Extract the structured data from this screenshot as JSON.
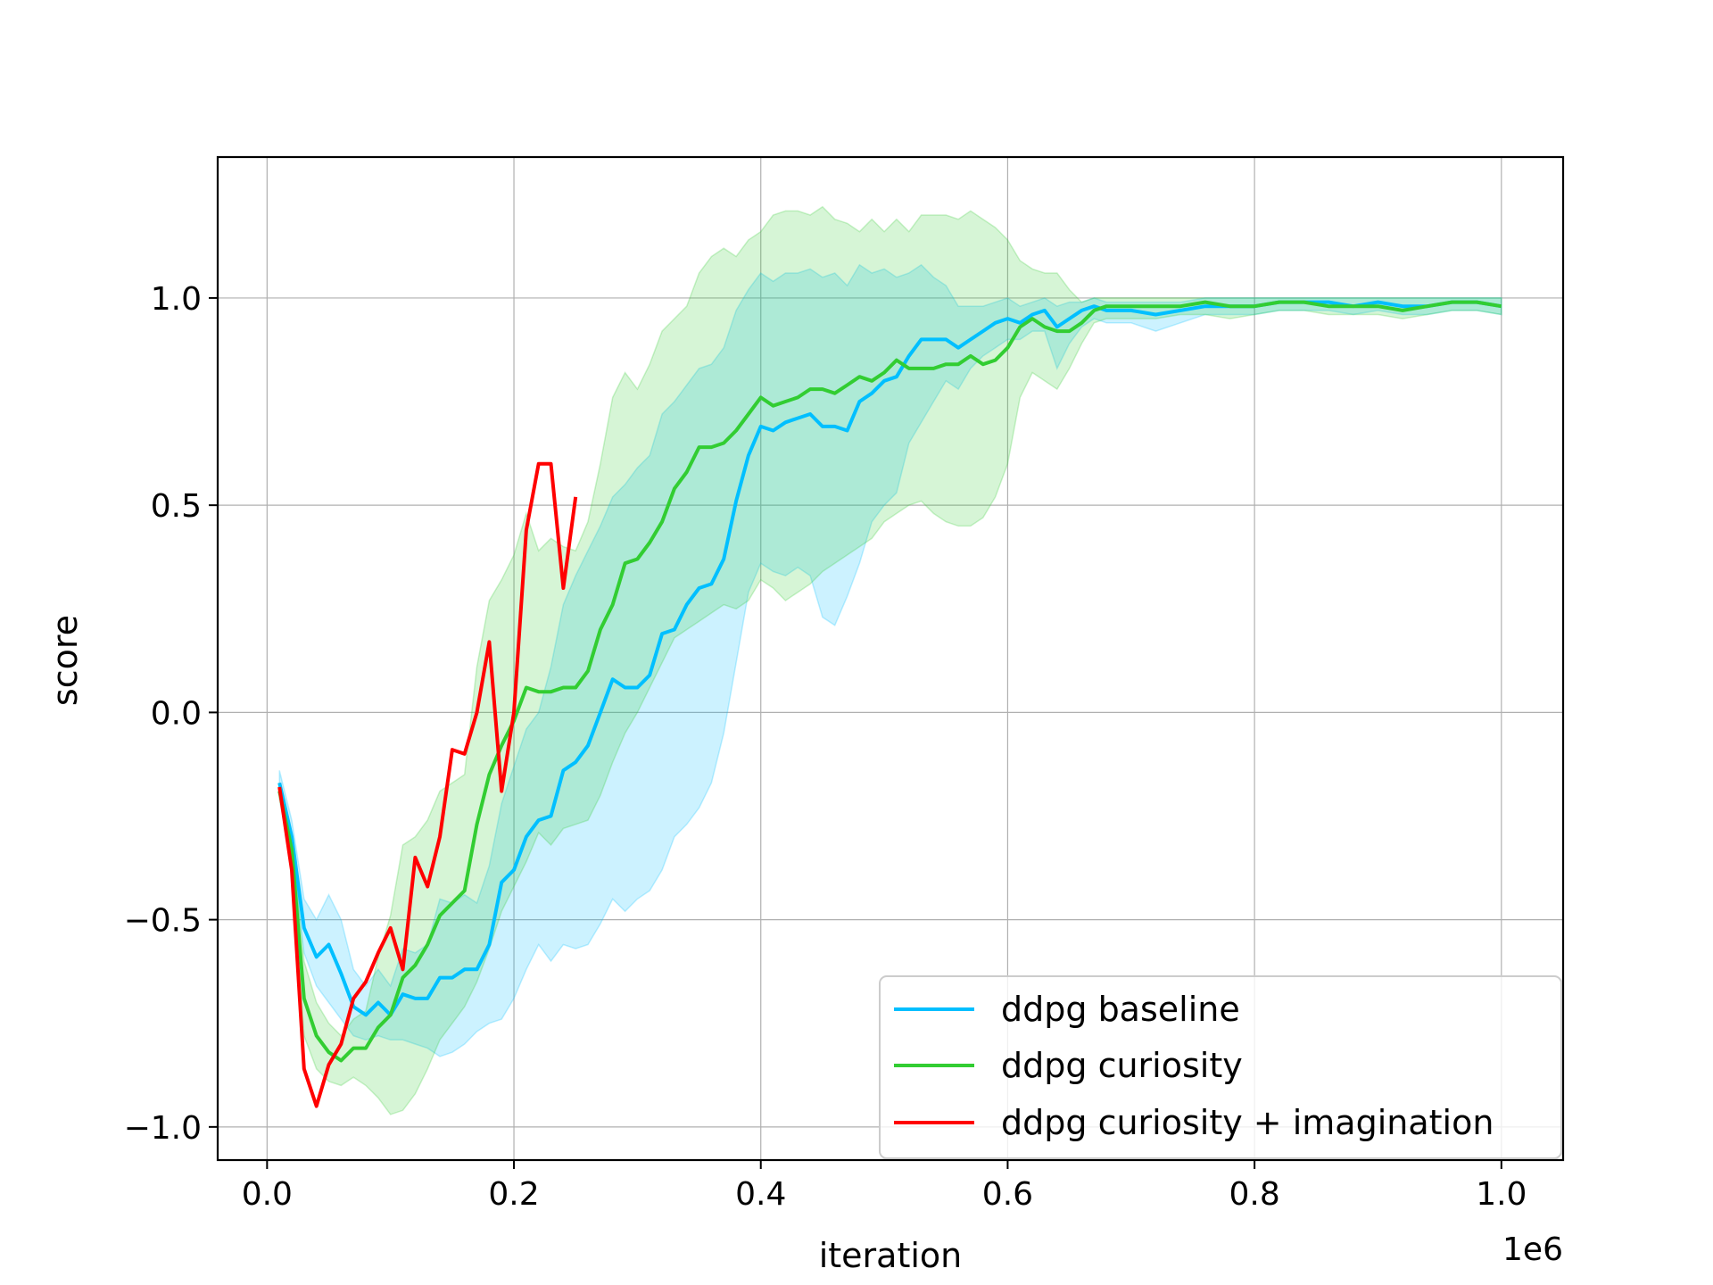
{
  "chart_data": {
    "type": "line",
    "xlabel": "iteration",
    "ylabel": "score",
    "x_offset_label": "1e6",
    "xlim": [
      -0.04,
      1.05
    ],
    "ylim": [
      -1.08,
      1.34
    ],
    "xticks": [
      0.0,
      0.2,
      0.4,
      0.6,
      0.8,
      1.0
    ],
    "xtick_labels": [
      "0.0",
      "0.2",
      "0.4",
      "0.6",
      "0.8",
      "1.0"
    ],
    "yticks": [
      -1.0,
      -0.5,
      0.0,
      0.5,
      1.0
    ],
    "ytick_labels": [
      "−1.0",
      "−0.5",
      "0.0",
      "0.5",
      "1.0"
    ],
    "grid": true,
    "legend_position": "lower-right",
    "series": [
      {
        "name": "ddpg baseline",
        "color": "#00bfff",
        "x": [
          0.01,
          0.02,
          0.03,
          0.04,
          0.05,
          0.06,
          0.07,
          0.08,
          0.09,
          0.1,
          0.11,
          0.12,
          0.13,
          0.14,
          0.15,
          0.16,
          0.17,
          0.18,
          0.19,
          0.2,
          0.21,
          0.22,
          0.23,
          0.24,
          0.25,
          0.26,
          0.27,
          0.28,
          0.29,
          0.3,
          0.31,
          0.32,
          0.33,
          0.34,
          0.35,
          0.36,
          0.37,
          0.38,
          0.39,
          0.4,
          0.41,
          0.42,
          0.43,
          0.44,
          0.45,
          0.46,
          0.47,
          0.48,
          0.49,
          0.5,
          0.51,
          0.52,
          0.53,
          0.54,
          0.55,
          0.56,
          0.57,
          0.58,
          0.59,
          0.6,
          0.61,
          0.62,
          0.63,
          0.64,
          0.65,
          0.66,
          0.67,
          0.68,
          0.7,
          0.72,
          0.74,
          0.76,
          0.78,
          0.8,
          0.82,
          0.84,
          0.86,
          0.88,
          0.9,
          0.92,
          0.94,
          0.96,
          0.98,
          1.0
        ],
        "y": [
          -0.17,
          -0.3,
          -0.52,
          -0.59,
          -0.56,
          -0.63,
          -0.71,
          -0.73,
          -0.7,
          -0.73,
          -0.68,
          -0.69,
          -0.69,
          -0.64,
          -0.64,
          -0.62,
          -0.62,
          -0.56,
          -0.41,
          -0.38,
          -0.3,
          -0.26,
          -0.25,
          -0.14,
          -0.12,
          -0.08,
          0.0,
          0.08,
          0.06,
          0.06,
          0.09,
          0.19,
          0.2,
          0.26,
          0.3,
          0.31,
          0.37,
          0.51,
          0.62,
          0.69,
          0.68,
          0.7,
          0.71,
          0.72,
          0.69,
          0.69,
          0.68,
          0.75,
          0.77,
          0.8,
          0.81,
          0.86,
          0.9,
          0.9,
          0.9,
          0.88,
          0.9,
          0.92,
          0.94,
          0.95,
          0.94,
          0.96,
          0.97,
          0.93,
          0.95,
          0.97,
          0.98,
          0.97,
          0.97,
          0.96,
          0.97,
          0.98,
          0.98,
          0.98,
          0.99,
          0.99,
          0.99,
          0.98,
          0.99,
          0.98,
          0.98,
          0.99,
          0.99,
          0.98
        ],
        "lower": [
          -0.2,
          -0.33,
          -0.58,
          -0.66,
          -0.7,
          -0.74,
          -0.78,
          -0.79,
          -0.78,
          -0.79,
          -0.79,
          -0.8,
          -0.81,
          -0.83,
          -0.82,
          -0.8,
          -0.77,
          -0.75,
          -0.74,
          -0.69,
          -0.62,
          -0.56,
          -0.6,
          -0.56,
          -0.57,
          -0.56,
          -0.51,
          -0.45,
          -0.48,
          -0.45,
          -0.43,
          -0.38,
          -0.3,
          -0.27,
          -0.23,
          -0.17,
          -0.05,
          0.12,
          0.29,
          0.36,
          0.34,
          0.33,
          0.35,
          0.33,
          0.23,
          0.21,
          0.28,
          0.36,
          0.46,
          0.5,
          0.53,
          0.65,
          0.7,
          0.75,
          0.8,
          0.78,
          0.83,
          0.86,
          0.88,
          0.9,
          0.9,
          0.92,
          0.92,
          0.83,
          0.89,
          0.93,
          0.95,
          0.94,
          0.94,
          0.92,
          0.94,
          0.96,
          0.96,
          0.96,
          0.97,
          0.97,
          0.97,
          0.96,
          0.97,
          0.96,
          0.96,
          0.97,
          0.97,
          0.96
        ],
        "upper": [
          -0.14,
          -0.26,
          -0.45,
          -0.5,
          -0.44,
          -0.5,
          -0.62,
          -0.66,
          -0.62,
          -0.66,
          -0.57,
          -0.58,
          -0.56,
          -0.45,
          -0.46,
          -0.44,
          -0.46,
          -0.37,
          -0.22,
          -0.13,
          -0.04,
          0.0,
          0.11,
          0.26,
          0.33,
          0.39,
          0.45,
          0.52,
          0.55,
          0.59,
          0.62,
          0.72,
          0.75,
          0.79,
          0.83,
          0.84,
          0.88,
          0.97,
          1.02,
          1.06,
          1.04,
          1.06,
          1.06,
          1.07,
          1.05,
          1.06,
          1.03,
          1.08,
          1.06,
          1.07,
          1.05,
          1.06,
          1.08,
          1.05,
          1.03,
          0.98,
          0.98,
          0.98,
          0.99,
          1.0,
          0.98,
          0.99,
          1.0,
          0.98,
          0.99,
          0.99,
          1.0,
          0.99,
          0.99,
          0.99,
          0.99,
          1.0,
          1.0,
          1.0,
          1.0,
          1.0,
          1.0,
          1.0,
          1.0,
          1.0,
          1.0,
          1.0,
          1.0,
          1.0
        ]
      },
      {
        "name": "ddpg curiosity",
        "color": "#32cd32",
        "x": [
          0.01,
          0.02,
          0.03,
          0.04,
          0.05,
          0.06,
          0.07,
          0.08,
          0.09,
          0.1,
          0.11,
          0.12,
          0.13,
          0.14,
          0.15,
          0.16,
          0.17,
          0.18,
          0.19,
          0.2,
          0.21,
          0.22,
          0.23,
          0.24,
          0.25,
          0.26,
          0.27,
          0.28,
          0.29,
          0.3,
          0.31,
          0.32,
          0.33,
          0.34,
          0.35,
          0.36,
          0.37,
          0.38,
          0.39,
          0.4,
          0.41,
          0.42,
          0.43,
          0.44,
          0.45,
          0.46,
          0.47,
          0.48,
          0.49,
          0.5,
          0.51,
          0.52,
          0.53,
          0.54,
          0.55,
          0.56,
          0.57,
          0.58,
          0.59,
          0.6,
          0.61,
          0.62,
          0.63,
          0.64,
          0.65,
          0.66,
          0.67,
          0.68,
          0.7,
          0.72,
          0.74,
          0.76,
          0.78,
          0.8,
          0.82,
          0.84,
          0.86,
          0.88,
          0.9,
          0.92,
          0.94,
          0.96,
          0.98,
          1.0
        ],
        "y": [
          -0.19,
          -0.33,
          -0.69,
          -0.78,
          -0.82,
          -0.84,
          -0.81,
          -0.81,
          -0.76,
          -0.73,
          -0.64,
          -0.61,
          -0.56,
          -0.49,
          -0.46,
          -0.43,
          -0.27,
          -0.15,
          -0.08,
          -0.02,
          0.06,
          0.05,
          0.05,
          0.06,
          0.06,
          0.1,
          0.2,
          0.26,
          0.36,
          0.37,
          0.41,
          0.46,
          0.54,
          0.58,
          0.64,
          0.64,
          0.65,
          0.68,
          0.72,
          0.76,
          0.74,
          0.75,
          0.76,
          0.78,
          0.78,
          0.77,
          0.79,
          0.81,
          0.8,
          0.82,
          0.85,
          0.83,
          0.83,
          0.83,
          0.84,
          0.84,
          0.86,
          0.84,
          0.85,
          0.88,
          0.93,
          0.95,
          0.93,
          0.92,
          0.92,
          0.94,
          0.97,
          0.98,
          0.98,
          0.98,
          0.98,
          0.99,
          0.98,
          0.98,
          0.99,
          0.99,
          0.98,
          0.98,
          0.98,
          0.97,
          0.98,
          0.99,
          0.99,
          0.98
        ],
        "lower": [
          -0.21,
          -0.36,
          -0.78,
          -0.86,
          -0.89,
          -0.9,
          -0.88,
          -0.9,
          -0.93,
          -0.97,
          -0.96,
          -0.92,
          -0.86,
          -0.79,
          -0.75,
          -0.71,
          -0.65,
          -0.57,
          -0.48,
          -0.42,
          -0.36,
          -0.29,
          -0.32,
          -0.28,
          -0.27,
          -0.26,
          -0.2,
          -0.12,
          -0.05,
          0.0,
          0.06,
          0.12,
          0.18,
          0.2,
          0.22,
          0.24,
          0.26,
          0.25,
          0.27,
          0.32,
          0.3,
          0.27,
          0.29,
          0.31,
          0.34,
          0.36,
          0.38,
          0.4,
          0.42,
          0.46,
          0.48,
          0.5,
          0.51,
          0.48,
          0.46,
          0.45,
          0.45,
          0.47,
          0.52,
          0.6,
          0.76,
          0.82,
          0.8,
          0.78,
          0.83,
          0.89,
          0.94,
          0.95,
          0.95,
          0.95,
          0.96,
          0.96,
          0.95,
          0.96,
          0.97,
          0.97,
          0.96,
          0.96,
          0.96,
          0.95,
          0.96,
          0.97,
          0.97,
          0.96
        ],
        "upper": [
          -0.17,
          -0.3,
          -0.6,
          -0.7,
          -0.75,
          -0.78,
          -0.74,
          -0.72,
          -0.59,
          -0.49,
          -0.32,
          -0.3,
          -0.26,
          -0.19,
          -0.17,
          -0.15,
          0.11,
          0.27,
          0.32,
          0.38,
          0.48,
          0.39,
          0.42,
          0.4,
          0.39,
          0.46,
          0.6,
          0.76,
          0.82,
          0.78,
          0.84,
          0.92,
          0.95,
          0.98,
          1.06,
          1.1,
          1.12,
          1.1,
          1.14,
          1.16,
          1.2,
          1.21,
          1.21,
          1.2,
          1.22,
          1.19,
          1.18,
          1.16,
          1.19,
          1.16,
          1.19,
          1.16,
          1.2,
          1.2,
          1.2,
          1.19,
          1.21,
          1.19,
          1.17,
          1.14,
          1.09,
          1.07,
          1.06,
          1.06,
          1.02,
          0.99,
          1.0,
          1.0,
          1.0,
          1.0,
          1.0,
          1.0,
          1.0,
          1.0,
          1.0,
          1.0,
          1.0,
          1.0,
          1.0,
          1.0,
          1.0,
          1.0,
          1.0,
          1.0
        ]
      },
      {
        "name": "ddpg curiosity + imagination",
        "color": "#ff0000",
        "x": [
          0.01,
          0.02,
          0.03,
          0.04,
          0.05,
          0.06,
          0.07,
          0.08,
          0.09,
          0.1,
          0.11,
          0.12,
          0.13,
          0.14,
          0.15,
          0.16,
          0.17,
          0.18,
          0.19,
          0.2,
          0.21,
          0.22,
          0.23,
          0.24,
          0.25
        ],
        "y": [
          -0.18,
          -0.38,
          -0.86,
          -0.95,
          -0.85,
          -0.8,
          -0.69,
          -0.65,
          -0.58,
          -0.52,
          -0.62,
          -0.35,
          -0.42,
          -0.3,
          -0.09,
          -0.1,
          0.0,
          0.17,
          -0.19,
          0.0,
          0.44,
          0.6,
          0.6,
          0.3,
          0.52
        ]
      }
    ]
  }
}
